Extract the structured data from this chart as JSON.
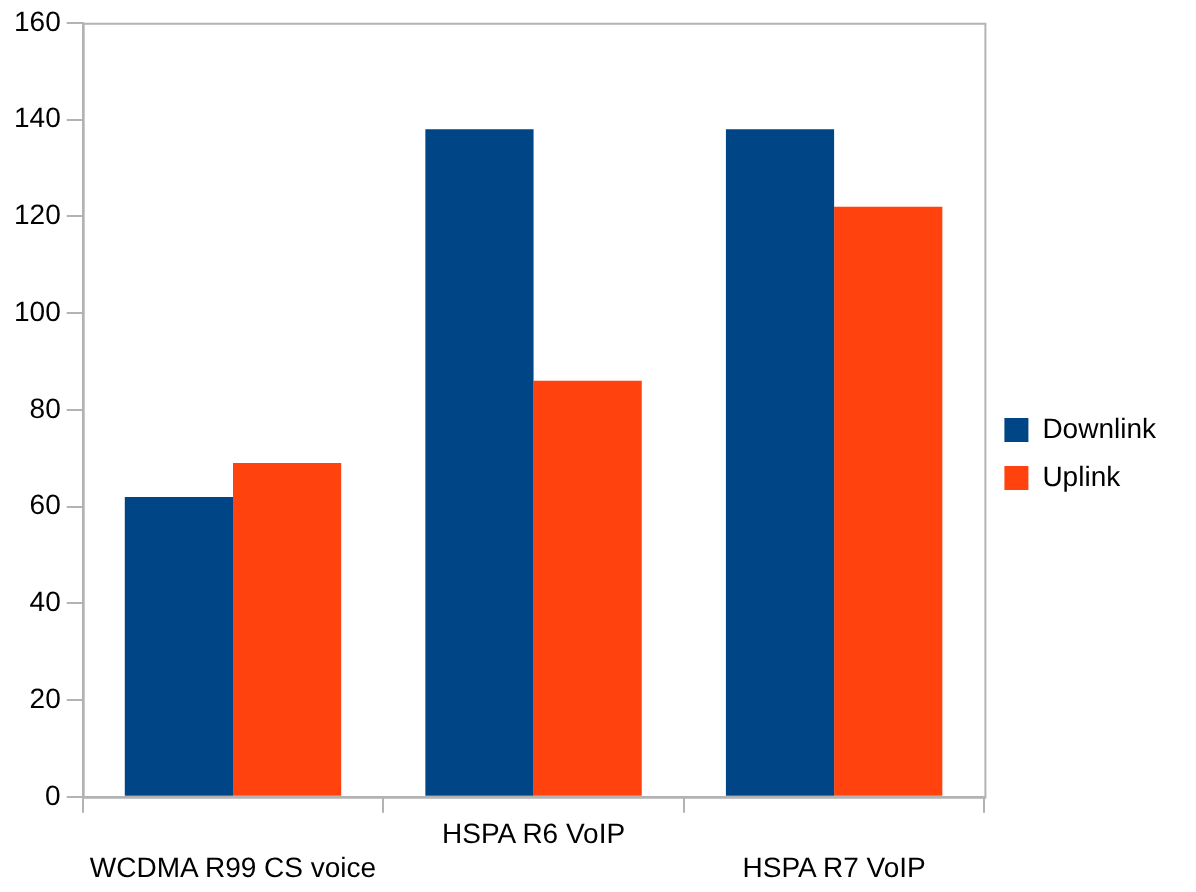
{
  "chart_data": {
    "type": "bar",
    "categories": [
      "WCDMA R99 CS voice",
      "HSPA R6 VoIP",
      "HSPA R7 VoIP"
    ],
    "series": [
      {
        "name": "Downlink",
        "color": "#004586",
        "values": [
          62,
          138,
          138
        ]
      },
      {
        "name": "Uplink",
        "color": "#ff420e",
        "values": [
          69,
          86,
          122
        ]
      }
    ],
    "ylim": [
      0,
      160
    ],
    "yticks": [
      0,
      20,
      40,
      60,
      80,
      100,
      120,
      140,
      160
    ],
    "grid": false,
    "legend": "right"
  }
}
